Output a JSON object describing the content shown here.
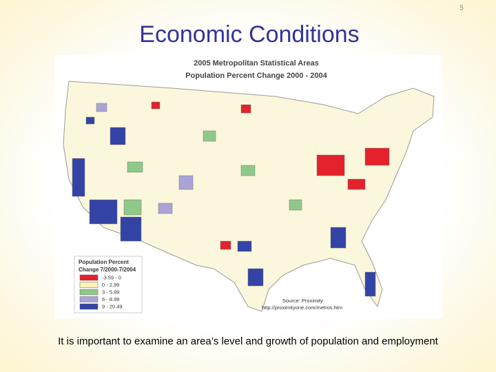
{
  "page_number": "5",
  "title": "Economic Conditions",
  "map": {
    "title_lines": [
      "2005 Metropolitan Statistical Areas",
      "Population Percent Change 2000 - 2004"
    ],
    "legend": {
      "title_lines": [
        "Population Percent",
        "Change 7/2000-7/2004"
      ],
      "items": [
        {
          "label": "-3.59 - 0",
          "color": "#e3222c"
        },
        {
          "label": "0 - 2.99",
          "color": "#fbf4b4"
        },
        {
          "label": "3 - 5.99",
          "color": "#8fc98a"
        },
        {
          "label": "6 - 8.99",
          "color": "#aaa3d8"
        },
        {
          "label": "9 - 20.49",
          "color": "#3343a6"
        }
      ]
    },
    "source_lines": [
      "Source: Proximity",
      "http://proximityone.com/metros.htm"
    ]
  },
  "caption": "It is important to examine an area’s level and growth of population and employment"
}
